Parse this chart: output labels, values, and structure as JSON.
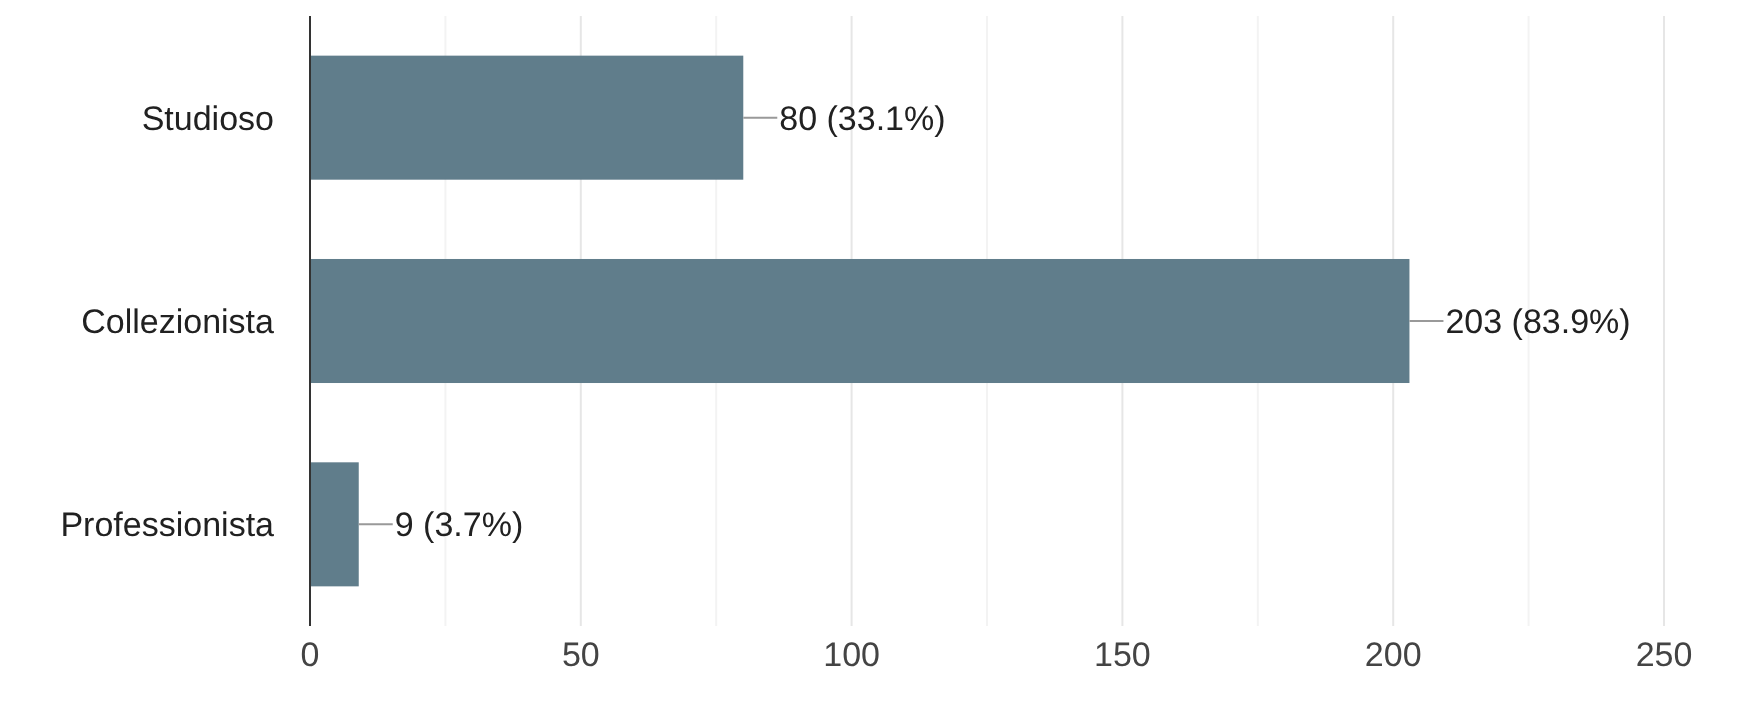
{
  "chart_data": {
    "type": "bar",
    "orientation": "horizontal",
    "categories": [
      "Studioso",
      "Collezionista",
      "Professionista"
    ],
    "values": [
      80,
      203,
      9
    ],
    "value_labels": [
      "80 (33.1%)",
      "203 (83.9%)",
      "9 (3.7%)"
    ],
    "color": "#607d8b",
    "xlim": [
      0,
      250
    ],
    "xticks": [
      0,
      {
        "value": 25,
        "label": null
      },
      50,
      {
        "value": 75,
        "label": null
      },
      100,
      {
        "value": 125,
        "label": null
      },
      150,
      {
        "value": 175,
        "label": null
      },
      200,
      {
        "value": 225,
        "label": null
      },
      250
    ],
    "grid": "x"
  }
}
